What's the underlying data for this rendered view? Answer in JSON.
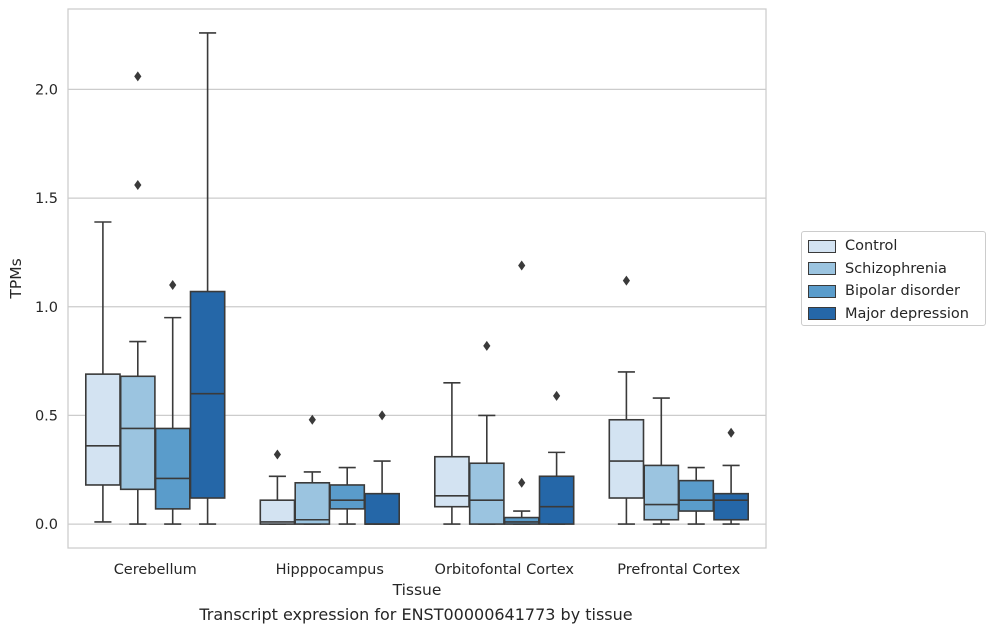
{
  "chart_data": {
    "type": "box",
    "xlabel": "Tissue",
    "ylabel": "TPMs",
    "caption": "Transcript expression for ENST00000641773 by tissue",
    "ylim": [
      -0.11,
      2.37
    ],
    "yticks": [
      0.0,
      0.5,
      1.0,
      1.5,
      2.0
    ],
    "ytick_labels": [
      "0.0",
      "0.5",
      "1.0",
      "1.5",
      "2.0"
    ],
    "categories": [
      "Cerebellum",
      "Hipppocampus",
      "Orbitofontal Cortex",
      "Prefrontal Cortex"
    ],
    "grid": "horizontal",
    "legend_position": "right",
    "series": [
      {
        "name": "Control",
        "color": "#d3e3f2",
        "boxes": [
          {
            "whislo": 0.01,
            "q1": 0.18,
            "med": 0.36,
            "q3": 0.69,
            "whishi": 1.39,
            "fliers": []
          },
          {
            "whislo": 0.0,
            "q1": 0.0,
            "med": 0.01,
            "q3": 0.11,
            "whishi": 0.22,
            "fliers": [
              0.32
            ]
          },
          {
            "whislo": 0.0,
            "q1": 0.08,
            "med": 0.13,
            "q3": 0.31,
            "whishi": 0.65,
            "fliers": []
          },
          {
            "whislo": 0.0,
            "q1": 0.12,
            "med": 0.29,
            "q3": 0.48,
            "whishi": 0.7,
            "fliers": [
              1.12
            ]
          }
        ]
      },
      {
        "name": "Schizophrenia",
        "color": "#9bc4e0",
        "boxes": [
          {
            "whislo": 0.0,
            "q1": 0.16,
            "med": 0.44,
            "q3": 0.68,
            "whishi": 0.84,
            "fliers": [
              1.56,
              2.06
            ]
          },
          {
            "whislo": 0.0,
            "q1": 0.0,
            "med": 0.02,
            "q3": 0.19,
            "whishi": 0.24,
            "fliers": [
              0.48
            ]
          },
          {
            "whislo": 0.0,
            "q1": 0.0,
            "med": 0.11,
            "q3": 0.28,
            "whishi": 0.5,
            "fliers": [
              0.82
            ]
          },
          {
            "whislo": 0.0,
            "q1": 0.02,
            "med": 0.09,
            "q3": 0.27,
            "whishi": 0.58,
            "fliers": []
          }
        ]
      },
      {
        "name": "Bipolar disorder",
        "color": "#5a9ccb",
        "boxes": [
          {
            "whislo": 0.0,
            "q1": 0.07,
            "med": 0.21,
            "q3": 0.44,
            "whishi": 0.95,
            "fliers": [
              1.1
            ]
          },
          {
            "whislo": 0.0,
            "q1": 0.07,
            "med": 0.11,
            "q3": 0.18,
            "whishi": 0.26,
            "fliers": []
          },
          {
            "whislo": 0.0,
            "q1": 0.0,
            "med": 0.01,
            "q3": 0.03,
            "whishi": 0.06,
            "fliers": [
              0.19,
              1.19
            ]
          },
          {
            "whislo": 0.0,
            "q1": 0.06,
            "med": 0.11,
            "q3": 0.2,
            "whishi": 0.26,
            "fliers": []
          }
        ]
      },
      {
        "name": "Major depression",
        "color": "#2567a8",
        "boxes": [
          {
            "whislo": 0.0,
            "q1": 0.12,
            "med": 0.6,
            "q3": 1.07,
            "whishi": 2.26,
            "fliers": []
          },
          {
            "whislo": 0.0,
            "q1": 0.0,
            "med": 0.0,
            "q3": 0.14,
            "whishi": 0.29,
            "fliers": [
              0.5
            ]
          },
          {
            "whislo": 0.0,
            "q1": 0.0,
            "med": 0.08,
            "q3": 0.22,
            "whishi": 0.33,
            "fliers": [
              0.59
            ]
          },
          {
            "whislo": 0.0,
            "q1": 0.02,
            "med": 0.11,
            "q3": 0.14,
            "whishi": 0.27,
            "fliers": [
              0.42
            ]
          }
        ]
      }
    ],
    "colors": {
      "grid": "#cccccc",
      "frame": "#cccccc",
      "box_edge": "#3a3a3a",
      "background": "#ffffff"
    }
  }
}
